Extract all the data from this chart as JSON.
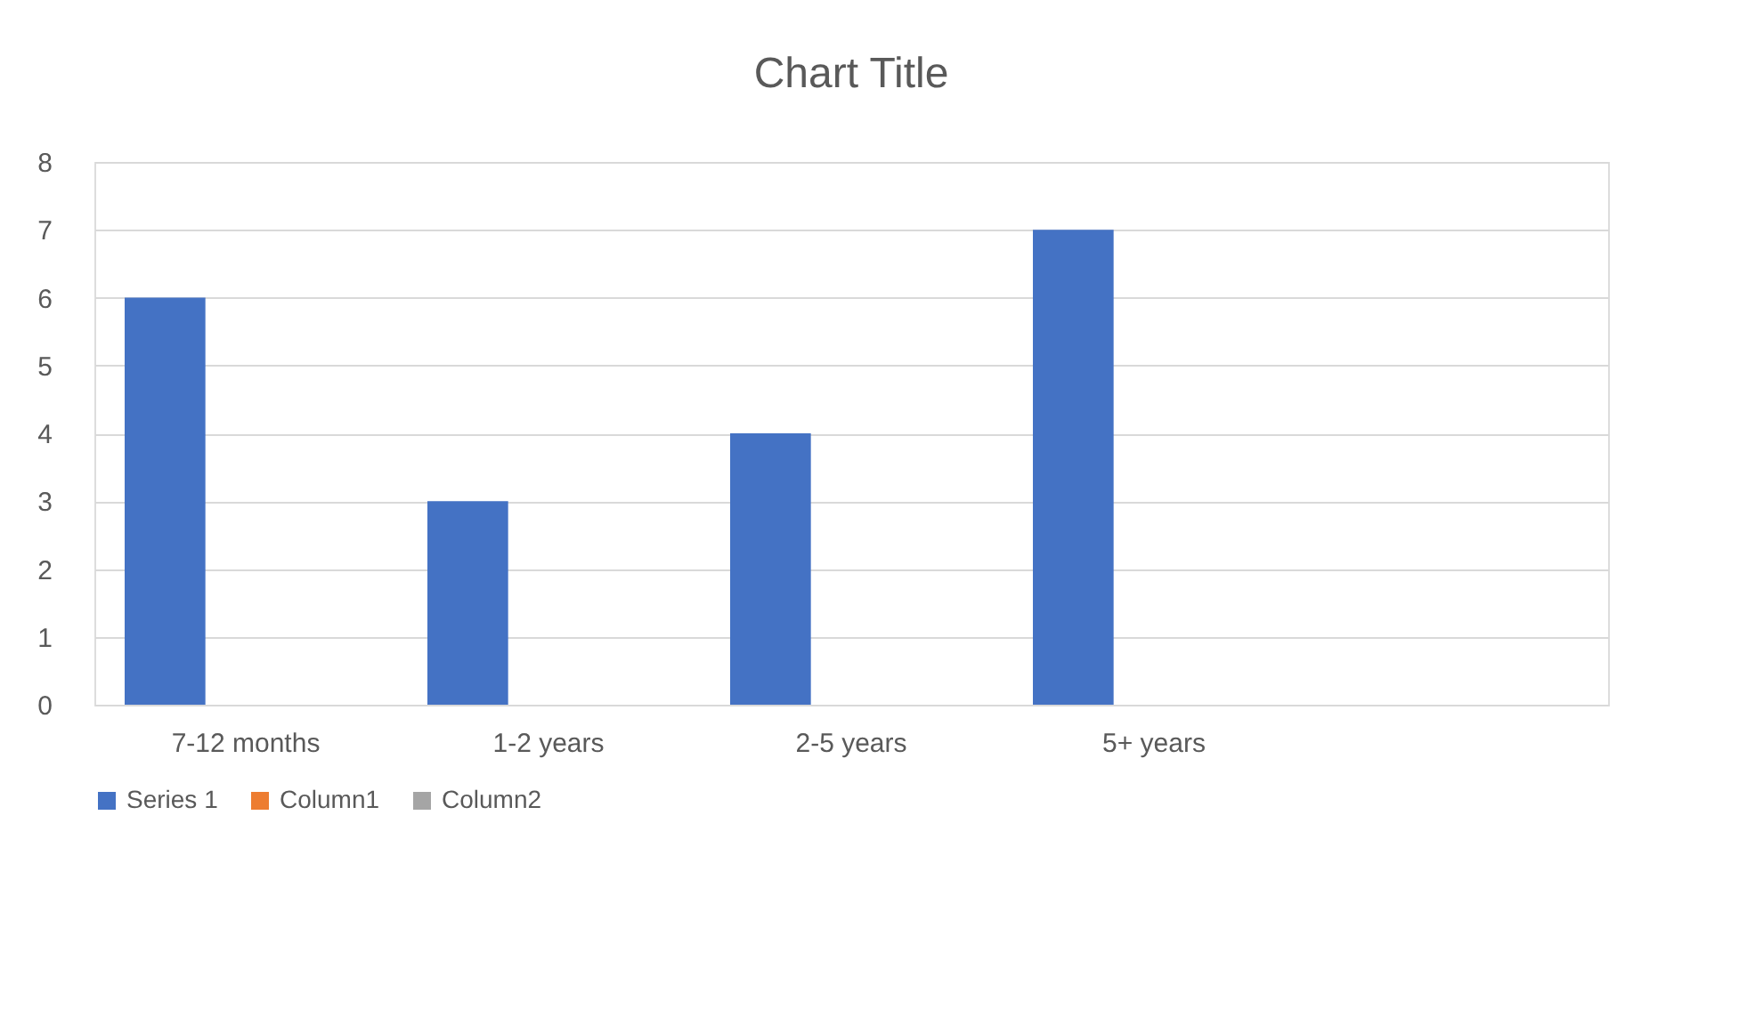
{
  "chart_data": {
    "type": "bar",
    "title": "Chart Title",
    "categories": [
      "7-12 months",
      "1-2 years",
      "2-5 years",
      "5+ years",
      null
    ],
    "series": [
      {
        "name": "Series 1",
        "color": "#4472c4",
        "values": [
          6,
          3,
          4,
          7,
          null
        ]
      },
      {
        "name": "Column1",
        "color": "#ed7d31",
        "values": [
          null,
          null,
          null,
          null,
          null
        ]
      },
      {
        "name": "Column2",
        "color": "#a5a5a5",
        "values": [
          null,
          null,
          null,
          null,
          null
        ]
      }
    ],
    "ylim": [
      0,
      8
    ],
    "yticks": [
      0,
      1,
      2,
      3,
      4,
      5,
      6,
      7,
      8
    ],
    "grid": "y",
    "legend": "bottom"
  }
}
